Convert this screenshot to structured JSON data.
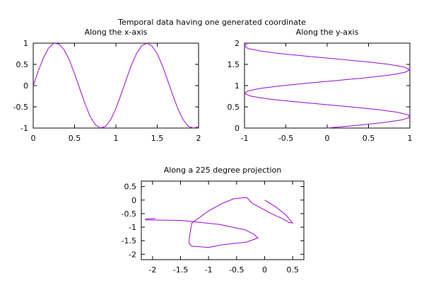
{
  "figure": {
    "title": "Temporal data having one generated coordinate"
  },
  "colors": {
    "curve": "#9400d3",
    "axes": "#000000"
  },
  "chart_data": [
    {
      "id": "x-axis",
      "type": "line",
      "title": "Along the x-axis",
      "xlabel": "",
      "ylabel": "",
      "xlim": [
        0,
        2
      ],
      "ylim": [
        -1,
        1
      ],
      "xticks": [
        0,
        0.5,
        1,
        1.5,
        2
      ],
      "yticks": [
        -1,
        -0.5,
        0,
        0.5,
        1
      ],
      "xtick_labels": [
        "0",
        "0.5",
        "1",
        "1.5",
        "2"
      ],
      "ytick_labels": [
        "-1",
        "-0.5",
        "0",
        "0.5",
        "1"
      ],
      "grid": false,
      "series": [
        {
          "x": [
            0,
            0.0625,
            0.125,
            0.1875,
            0.25,
            0.3125,
            0.375,
            0.4375,
            0.5,
            0.5625,
            0.625,
            0.6875,
            0.75,
            0.8125,
            0.875,
            0.9375,
            1,
            1.0625,
            1.125,
            1.1875,
            1.25,
            1.3125,
            1.375,
            1.4375,
            1.5,
            1.5625,
            1.625,
            1.6875,
            1.75,
            1.8125,
            1.875,
            1.9375,
            2
          ],
          "y": [
            0,
            0.35,
            0.66,
            0.89,
            1.0,
            0.98,
            0.84,
            0.6,
            0.28,
            -0.07,
            -0.42,
            -0.72,
            -0.92,
            -1.0,
            -0.96,
            -0.8,
            -0.54,
            -0.21,
            0.14,
            0.48,
            0.76,
            0.94,
            1.0,
            0.93,
            0.75,
            0.47,
            0.13,
            -0.22,
            -0.55,
            -0.8,
            -0.96,
            -1.0,
            -0.97
          ]
        }
      ]
    },
    {
      "id": "y-axis",
      "type": "line",
      "title": "Along the y-axis",
      "xlabel": "",
      "ylabel": "",
      "xlim": [
        -1,
        1
      ],
      "ylim": [
        0,
        2
      ],
      "xticks": [
        -1,
        -0.5,
        0,
        0.5,
        1
      ],
      "yticks": [
        0,
        0.5,
        1,
        1.5,
        2
      ],
      "xtick_labels": [
        "-1",
        "-0.5",
        "0",
        "0.5",
        "1"
      ],
      "ytick_labels": [
        "0",
        "0.5",
        "1",
        "1.5",
        "2"
      ],
      "grid": false,
      "series": [
        {
          "x": [
            0,
            0.35,
            0.66,
            0.89,
            1.0,
            0.98,
            0.84,
            0.6,
            0.28,
            -0.07,
            -0.42,
            -0.72,
            -0.92,
            -1.0,
            -0.96,
            -0.8,
            -0.54,
            -0.21,
            0.14,
            0.48,
            0.76,
            0.94,
            1.0,
            0.93,
            0.75,
            0.47,
            0.13,
            -0.22,
            -0.55,
            -0.8,
            -0.96,
            -1.0,
            -0.97
          ],
          "y": [
            0,
            0.0625,
            0.125,
            0.1875,
            0.25,
            0.3125,
            0.375,
            0.4375,
            0.5,
            0.5625,
            0.625,
            0.6875,
            0.75,
            0.8125,
            0.875,
            0.9375,
            1,
            1.0625,
            1.125,
            1.1875,
            1.25,
            1.3125,
            1.375,
            1.4375,
            1.5,
            1.5625,
            1.625,
            1.6875,
            1.75,
            1.8125,
            1.875,
            1.9375,
            2
          ]
        }
      ]
    },
    {
      "id": "projection",
      "type": "line",
      "title": "Along a 225 degree projection",
      "xlabel": "",
      "ylabel": "",
      "xlim": [
        -2.2,
        0.7
      ],
      "ylim": [
        -2.2,
        0.7
      ],
      "xticks": [
        -2,
        -1.5,
        -1,
        -0.5,
        0,
        0.5
      ],
      "yticks": [
        -2,
        -1.5,
        -1,
        -0.5,
        0,
        0.5
      ],
      "xtick_labels": [
        "-2",
        "-1.5",
        "-1",
        "-0.5",
        "0",
        "0.5"
      ],
      "ytick_labels": [
        "-2",
        "-1.5",
        "-1",
        "-0.5",
        "0",
        "0.5"
      ],
      "grid": false,
      "series": [
        {
          "x": [
            0,
            0.2,
            0.38,
            0.5,
            0.5,
            0.43,
            0.33,
            0.12,
            -0.22,
            -0.32,
            -0.55,
            -0.75,
            -1.0,
            -1.3,
            -1.34,
            -1.35,
            -1.3,
            -1.0,
            -0.75,
            -0.32,
            -0.12,
            -0.2,
            -0.35,
            -0.8,
            -1.5,
            -2.13,
            -2.12,
            -1.95
          ],
          "y": [
            0,
            -0.25,
            -0.55,
            -0.85,
            -0.85,
            -0.82,
            -0.7,
            -0.5,
            -0.12,
            0.1,
            0.05,
            -0.12,
            -0.4,
            -0.85,
            -1.35,
            -1.6,
            -1.7,
            -1.75,
            -1.65,
            -1.55,
            -1.4,
            -1.25,
            -1.1,
            -0.9,
            -0.75,
            -0.73,
            -0.7,
            -0.68
          ]
        }
      ]
    }
  ]
}
